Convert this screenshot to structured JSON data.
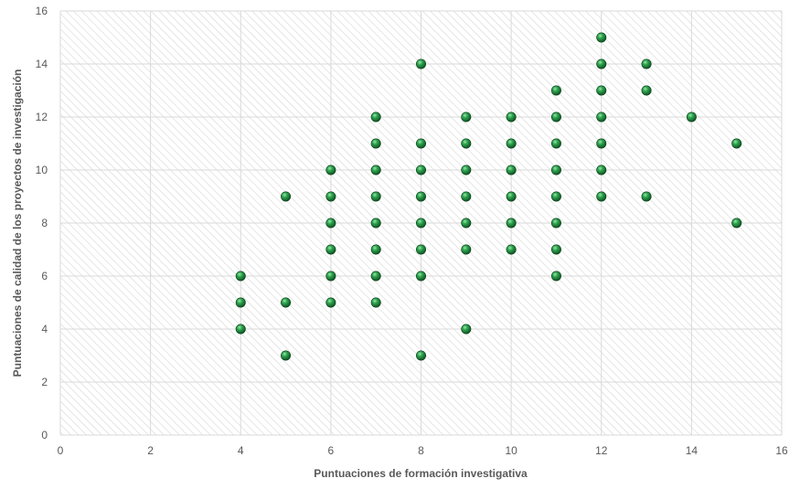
{
  "chart_data": {
    "type": "scatter",
    "title": "",
    "xlabel": "Puntuaciones de formación investigativa",
    "ylabel": "Puntuaciones de calidad de los proyectos de investigación",
    "xlim": [
      0,
      16
    ],
    "ylim": [
      0,
      16
    ],
    "x_ticks": [
      0,
      2,
      4,
      6,
      8,
      10,
      12,
      14,
      16
    ],
    "y_ticks": [
      0,
      2,
      4,
      6,
      8,
      10,
      12,
      14,
      16
    ],
    "grid": true,
    "legend": "none",
    "marker_color": "#1a8a3a",
    "series": [
      {
        "points": [
          [
            4,
            4
          ],
          [
            4,
            5
          ],
          [
            4,
            6
          ],
          [
            5,
            3
          ],
          [
            5,
            5
          ],
          [
            5,
            9
          ],
          [
            6,
            5
          ],
          [
            6,
            6
          ],
          [
            6,
            7
          ],
          [
            6,
            8
          ],
          [
            6,
            9
          ],
          [
            6,
            10
          ],
          [
            7,
            5
          ],
          [
            7,
            6
          ],
          [
            7,
            7
          ],
          [
            7,
            8
          ],
          [
            7,
            9
          ],
          [
            7,
            10
          ],
          [
            7,
            11
          ],
          [
            7,
            12
          ],
          [
            8,
            3
          ],
          [
            8,
            6
          ],
          [
            8,
            7
          ],
          [
            8,
            8
          ],
          [
            8,
            9
          ],
          [
            8,
            10
          ],
          [
            8,
            11
          ],
          [
            8,
            14
          ],
          [
            9,
            4
          ],
          [
            9,
            7
          ],
          [
            9,
            8
          ],
          [
            9,
            9
          ],
          [
            9,
            10
          ],
          [
            9,
            11
          ],
          [
            9,
            12
          ],
          [
            10,
            7
          ],
          [
            10,
            8
          ],
          [
            10,
            9
          ],
          [
            10,
            10
          ],
          [
            10,
            11
          ],
          [
            10,
            12
          ],
          [
            11,
            6
          ],
          [
            11,
            7
          ],
          [
            11,
            8
          ],
          [
            11,
            9
          ],
          [
            11,
            10
          ],
          [
            11,
            11
          ],
          [
            11,
            12
          ],
          [
            11,
            13
          ],
          [
            12,
            9
          ],
          [
            12,
            10
          ],
          [
            12,
            11
          ],
          [
            12,
            12
          ],
          [
            12,
            13
          ],
          [
            12,
            14
          ],
          [
            12,
            15
          ],
          [
            13,
            9
          ],
          [
            13,
            13
          ],
          [
            13,
            14
          ],
          [
            14,
            12
          ],
          [
            15,
            8
          ],
          [
            15,
            11
          ]
        ]
      }
    ]
  }
}
